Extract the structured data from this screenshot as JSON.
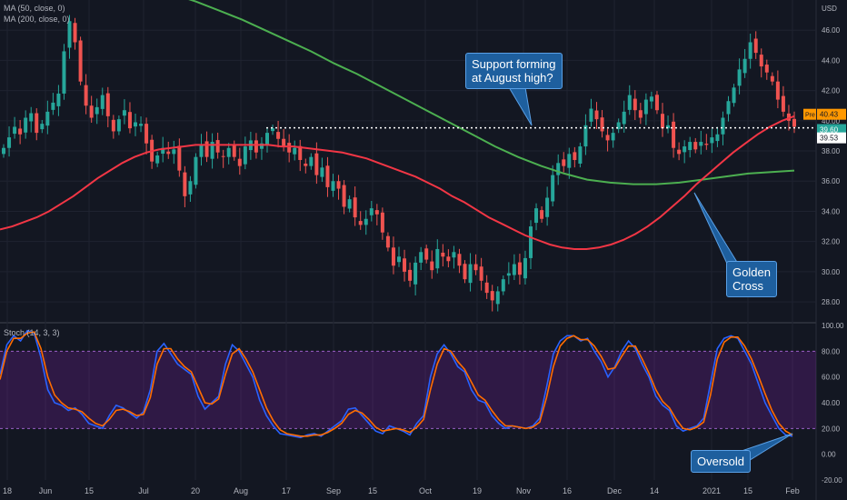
{
  "legend": {
    "ma50": "MA (50, close, 0)",
    "ma200": "MA (200, close, 0)",
    "stoch": "Stoch (14, 3, 3)"
  },
  "currency": "USD",
  "annotations": {
    "support": "Support forming\nat August high?",
    "golden": "Golden\nCross",
    "oversold": "Oversold"
  },
  "price_tags": {
    "pre_label": "Pre",
    "pre_value": "40.43",
    "last_value": "39.60",
    "support_value": "39.53"
  },
  "x_labels": [
    "18",
    "Jun",
    "15",
    "Jul",
    "20",
    "Aug",
    "17",
    "Sep",
    "15",
    "Oct",
    "19",
    "Nov",
    "16",
    "Dec",
    "14",
    "2021",
    "15",
    "Feb"
  ],
  "price_axis_ticks": [
    "46.00",
    "44.00",
    "42.00",
    "40.00",
    "38.00",
    "36.00",
    "34.00",
    "32.00",
    "30.00",
    "28.00"
  ],
  "stoch_axis_ticks": [
    "100.00",
    "80.00",
    "60.00",
    "40.00",
    "20.00",
    "0.00",
    "-20.00"
  ],
  "colors": {
    "background": "#131722",
    "up": "#26a69a",
    "down": "#ef5350",
    "ma50": "#f23645",
    "ma200": "#4caf50",
    "stoch_k": "#2962ff",
    "stoch_d": "#ff6d00",
    "stoch_band": "#7b1fa2",
    "callout_fill": "#1e5f9e"
  },
  "chart_data": [
    {
      "type": "candlestick",
      "title": "",
      "ylim": [
        26.8,
        48.0
      ],
      "support_level": 39.53,
      "x_ticks": [
        "18",
        "Jun",
        "15",
        "Jul",
        "20",
        "Aug",
        "17",
        "Sep",
        "15",
        "Oct",
        "19",
        "Nov",
        "16",
        "Dec",
        "14",
        "2021",
        "15",
        "Feb"
      ],
      "candles_close": [
        38.2,
        38.9,
        39.6,
        39.1,
        40.2,
        40.5,
        39.2,
        39.8,
        40.6,
        41.2,
        41.8,
        44.6,
        46.6,
        45.2,
        42.6,
        41.0,
        40.2,
        40.9,
        41.7,
        40.3,
        39.3,
        40.1,
        40.7,
        39.5,
        39.9,
        39.8,
        38.5,
        37.3,
        37.7,
        38.2,
        37.8,
        38.1,
        36.7,
        35.0,
        36.0,
        37.6,
        38.4,
        37.6,
        38.6,
        37.9,
        37.6,
        38.2,
        37.6,
        37.0,
        38.3,
        38.7,
        37.9,
        38.5,
        39.2,
        39.5,
        38.8,
        38.3,
        37.9,
        38.2,
        37.4,
        37.0,
        37.6,
        36.4,
        36.9,
        35.6,
        36.0,
        35.5,
        34.3,
        34.8,
        33.6,
        33.1,
        33.5,
        34.2,
        33.8,
        32.6,
        31.6,
        30.4,
        31.0,
        30.0,
        29.4,
        30.6,
        31.3,
        30.8,
        30.1,
        31.5,
        31.0,
        30.7,
        31.3,
        30.4,
        29.5,
        30.5,
        30.1,
        29.4,
        28.6,
        28.1,
        28.7,
        29.5,
        29.9,
        30.5,
        29.8,
        30.9,
        33.0,
        34.2,
        33.5,
        34.9,
        36.4,
        37.2,
        37.0,
        37.8,
        37.4,
        38.3,
        39.7,
        40.8,
        40.1,
        39.3,
        38.7,
        39.2,
        39.9,
        40.6,
        41.7,
        40.7,
        40.2,
        41.4,
        41.6,
        40.7,
        39.5,
        39.7,
        38.2,
        37.8,
        38.3,
        38.6,
        38.1,
        38.6,
        38.4,
        38.9,
        39.1,
        40.2,
        41.3,
        42.2,
        43.4,
        44.1,
        45.2,
        44.5,
        43.6,
        43.2,
        42.6,
        41.4,
        40.6,
        40.0,
        39.6
      ],
      "ma50": [
        32.8,
        33.0,
        33.3,
        33.6,
        34.0,
        34.5,
        35.0,
        35.6,
        36.2,
        36.7,
        37.2,
        37.6,
        37.9,
        38.1,
        38.2,
        38.3,
        38.4,
        38.4,
        38.4,
        38.4,
        38.4,
        38.4,
        38.4,
        38.3,
        38.3,
        38.2,
        38.1,
        38.0,
        37.9,
        37.7,
        37.5,
        37.2,
        36.9,
        36.6,
        36.3,
        35.9,
        35.5,
        35.0,
        34.6,
        34.1,
        33.6,
        33.2,
        32.8,
        32.4,
        32.1,
        31.8,
        31.6,
        31.5,
        31.5,
        31.6,
        31.8,
        32.1,
        32.5,
        33.0,
        33.6,
        34.3,
        35.0,
        35.8,
        36.5,
        37.2,
        37.9,
        38.5,
        39.1,
        39.6,
        40.0,
        40.3
      ],
      "ma200": [
        48.8,
        48.4,
        47.9,
        47.3,
        46.7,
        46.0,
        45.3,
        44.6,
        43.8,
        43.1,
        42.3,
        41.5,
        40.7,
        39.9,
        39.1,
        38.3,
        37.6,
        37.0,
        36.5,
        36.1,
        35.9,
        35.8,
        35.8,
        35.9,
        36.1,
        36.3,
        36.5,
        36.6,
        36.7
      ]
    },
    {
      "type": "line",
      "title": "",
      "ylim": [
        -20,
        100
      ],
      "band": [
        20,
        80
      ],
      "series": [
        {
          "values": [
            62,
            85,
            92,
            88,
            96,
            94,
            75,
            50,
            40,
            38,
            34,
            36,
            31,
            24,
            22,
            20,
            30,
            38,
            36,
            32,
            28,
            33,
            50,
            80,
            86,
            78,
            70,
            66,
            62,
            45,
            35,
            40,
            45,
            70,
            85,
            80,
            70,
            60,
            42,
            30,
            22,
            16,
            15,
            14,
            13,
            15,
            16,
            14,
            18,
            22,
            26,
            35,
            36,
            30,
            24,
            18,
            16,
            22,
            20,
            18,
            15,
            24,
            30,
            60,
            78,
            85,
            78,
            68,
            64,
            50,
            42,
            40,
            30,
            24,
            20,
            22,
            21,
            20,
            22,
            28,
            52,
            78,
            88,
            92,
            92,
            88,
            90,
            80,
            72,
            60,
            68,
            80,
            88,
            82,
            70,
            60,
            45,
            38,
            34,
            22,
            18,
            20,
            22,
            28,
            55,
            82,
            90,
            92,
            90,
            80,
            70,
            55,
            40,
            30,
            20,
            15,
            14
          ]
        },
        {
          "values": [
            58,
            80,
            90,
            90,
            94,
            95,
            82,
            60,
            46,
            40,
            36,
            35,
            33,
            28,
            24,
            22,
            27,
            34,
            35,
            33,
            30,
            31,
            44,
            70,
            82,
            82,
            74,
            68,
            64,
            52,
            40,
            39,
            43,
            62,
            78,
            82,
            74,
            64,
            50,
            36,
            26,
            19,
            16,
            15,
            14,
            14,
            15,
            15,
            17,
            20,
            24,
            31,
            34,
            32,
            27,
            21,
            18,
            19,
            20,
            19,
            17,
            21,
            27,
            50,
            70,
            82,
            80,
            72,
            66,
            56,
            46,
            42,
            34,
            27,
            22,
            22,
            21,
            20,
            21,
            25,
            44,
            68,
            84,
            90,
            92,
            89,
            89,
            84,
            76,
            66,
            67,
            76,
            84,
            84,
            74,
            63,
            50,
            41,
            36,
            27,
            20,
            19,
            21,
            25,
            46,
            74,
            87,
            91,
            91,
            84,
            74,
            61,
            47,
            34,
            24,
            18,
            15
          ]
        }
      ]
    }
  ]
}
